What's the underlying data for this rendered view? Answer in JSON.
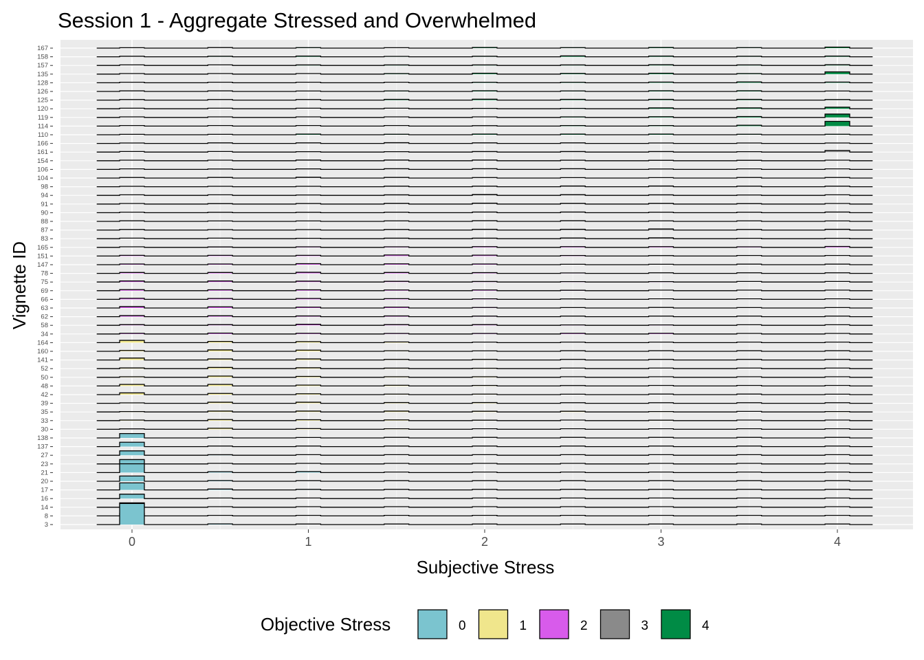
{
  "chart_data": {
    "type": "ridgeline-histogram",
    "title": "Session 1 - Aggregate Stressed and Overwhelmed",
    "xlabel": "Subjective Stress",
    "ylabel": "Vignette ID",
    "xlim": [
      -0.4,
      4.4
    ],
    "x_ticks": [
      "0",
      "1",
      "2",
      "3",
      "4"
    ],
    "bins": [
      0,
      0.5,
      1,
      1.5,
      2,
      2.5,
      3,
      3.5,
      4
    ],
    "legend": {
      "title": "Objective Stress",
      "position": "bottom",
      "entries": [
        {
          "label": "0",
          "color": "#7BC4CF"
        },
        {
          "label": "1",
          "color": "#F0E68C"
        },
        {
          "label": "2",
          "color": "#D85BEB"
        },
        {
          "label": "3",
          "color": "#8A8A8A"
        },
        {
          "label": "4",
          "color": "#008B45"
        }
      ]
    },
    "rows": [
      {
        "id": "3",
        "objective": 0,
        "counts": [
          12,
          0.4,
          0,
          0,
          0,
          0,
          0,
          0,
          0
        ]
      },
      {
        "id": "8",
        "objective": 0,
        "counts": [
          1.5,
          0,
          0,
          0,
          0,
          0,
          0,
          0,
          0
        ]
      },
      {
        "id": "14",
        "objective": 0,
        "counts": [
          2.5,
          0,
          0,
          0,
          0,
          0,
          0,
          0,
          0
        ]
      },
      {
        "id": "16",
        "objective": 0,
        "counts": [
          2.5,
          0,
          0,
          0,
          0,
          0,
          0,
          0,
          0
        ]
      },
      {
        "id": "17",
        "objective": 0,
        "counts": [
          4,
          0.5,
          0.3,
          0,
          0,
          0,
          0,
          0,
          0
        ]
      },
      {
        "id": "20",
        "objective": 0,
        "counts": [
          3,
          0.4,
          0,
          0,
          0,
          0,
          0,
          0,
          0
        ]
      },
      {
        "id": "21",
        "objective": 0,
        "counts": [
          5,
          0.5,
          0.6,
          0,
          0,
          0,
          0,
          0,
          0
        ]
      },
      {
        "id": "23",
        "objective": 0,
        "counts": [
          2.5,
          0,
          0,
          0,
          0,
          0,
          0,
          0,
          0
        ]
      },
      {
        "id": "27",
        "objective": 0,
        "counts": [
          2.5,
          0.3,
          0,
          0,
          0,
          0,
          0,
          0,
          0
        ]
      },
      {
        "id": "137",
        "objective": 0,
        "counts": [
          2.5,
          0,
          0,
          0,
          0,
          0,
          0,
          0,
          0
        ]
      },
      {
        "id": "138",
        "objective": 0,
        "counts": [
          2.5,
          0.3,
          0.2,
          0,
          0,
          0,
          0,
          0,
          0
        ]
      },
      {
        "id": "30",
        "objective": 1,
        "counts": [
          0.2,
          0.6,
          0.4,
          0.3,
          0,
          0,
          0,
          0,
          0
        ]
      },
      {
        "id": "33",
        "objective": 1,
        "counts": [
          0.3,
          0.6,
          0.5,
          0.4,
          0.2,
          0,
          0.2,
          0,
          0
        ]
      },
      {
        "id": "35",
        "objective": 1,
        "counts": [
          0.1,
          0.5,
          0.5,
          0.5,
          0.4,
          0.4,
          0.2,
          0,
          0.1
        ]
      },
      {
        "id": "39",
        "objective": 1,
        "counts": [
          0.2,
          0.6,
          0.6,
          0.4,
          0.4,
          0,
          0,
          0,
          0
        ]
      },
      {
        "id": "42",
        "objective": 1,
        "counts": [
          1,
          0.7,
          0.5,
          0.3,
          0.3,
          0.2,
          0,
          0,
          0.1
        ]
      },
      {
        "id": "48",
        "objective": 1,
        "counts": [
          0.9,
          0.9,
          0.5,
          0.4,
          0.3,
          0.2,
          0,
          0,
          0
        ]
      },
      {
        "id": "50",
        "objective": 1,
        "counts": [
          0.3,
          0.7,
          0.5,
          0.3,
          0.3,
          0,
          0,
          0,
          0
        ]
      },
      {
        "id": "52",
        "objective": 1,
        "counts": [
          0.4,
          0.7,
          0.5,
          0.3,
          0.2,
          0,
          0,
          0,
          0
        ]
      },
      {
        "id": "141",
        "objective": 1,
        "counts": [
          1.1,
          0.6,
          0.6,
          0.3,
          0.3,
          0,
          0,
          0,
          0
        ]
      },
      {
        "id": "160",
        "objective": 1,
        "counts": [
          0.5,
          0.8,
          0.7,
          0.3,
          0.2,
          0,
          0,
          0,
          0
        ]
      },
      {
        "id": "164",
        "objective": 1,
        "counts": [
          1.3,
          0.7,
          0.6,
          0.4,
          0,
          0,
          0,
          0,
          0
        ]
      },
      {
        "id": "34",
        "objective": 2,
        "counts": [
          0.4,
          0.5,
          0.4,
          0.3,
          0.3,
          0.4,
          0.4,
          0,
          0
        ]
      },
      {
        "id": "58",
        "objective": 2,
        "counts": [
          0.4,
          0.4,
          0.6,
          0.4,
          0.4,
          0.2,
          0.2,
          0,
          0
        ]
      },
      {
        "id": "62",
        "objective": 2,
        "counts": [
          0.6,
          0.5,
          0.4,
          0.4,
          0.3,
          0,
          0,
          0,
          0
        ]
      },
      {
        "id": "63",
        "objective": 2,
        "counts": [
          0.8,
          0.7,
          0.5,
          0.5,
          0.3,
          0.2,
          0,
          0.1,
          0.1
        ]
      },
      {
        "id": "66",
        "objective": 2,
        "counts": [
          0.6,
          0.5,
          0.5,
          0.4,
          0.3,
          0.2,
          0,
          0,
          0
        ]
      },
      {
        "id": "69",
        "objective": 2,
        "counts": [
          0.6,
          0.5,
          0.5,
          0.4,
          0.4,
          0.1,
          0,
          0,
          0
        ]
      },
      {
        "id": "75",
        "objective": 2,
        "counts": [
          0.6,
          0.6,
          0.5,
          0.4,
          0.3,
          0.1,
          0.2,
          0,
          0
        ]
      },
      {
        "id": "78",
        "objective": 2,
        "counts": [
          0.5,
          0.5,
          0.6,
          0.5,
          0.4,
          0.2,
          0,
          0,
          0
        ]
      },
      {
        "id": "147",
        "objective": 2,
        "counts": [
          0.4,
          0.4,
          0.6,
          0.5,
          0.4,
          0.2,
          0.2,
          0,
          0
        ]
      },
      {
        "id": "151",
        "objective": 2,
        "counts": [
          0.4,
          0.4,
          0.4,
          0.6,
          0.5,
          0.3,
          0.2,
          0,
          0
        ]
      },
      {
        "id": "165",
        "objective": 2,
        "counts": [
          0,
          0.2,
          0.3,
          0.3,
          0.4,
          0.4,
          0.4,
          0.3,
          0.5
        ]
      },
      {
        "id": "83",
        "objective": 3,
        "counts": [
          0,
          0,
          0.1,
          0.3,
          0.3,
          0.4,
          0.5,
          0.2,
          0.2
        ]
      },
      {
        "id": "87",
        "objective": 3,
        "counts": [
          0,
          0.1,
          0.2,
          0.3,
          0.4,
          0.4,
          0.6,
          0.3,
          0.4
        ]
      },
      {
        "id": "88",
        "objective": 3,
        "counts": [
          0,
          0.1,
          0.2,
          0.3,
          0.4,
          0.4,
          0.3,
          0.3,
          0.1
        ]
      },
      {
        "id": "90",
        "objective": 3,
        "counts": [
          0,
          0.1,
          0.2,
          0.3,
          0.4,
          0.4,
          0.3,
          0.3,
          0.4
        ]
      },
      {
        "id": "91",
        "objective": 3,
        "counts": [
          0,
          0.1,
          0.3,
          0.4,
          0.5,
          0.4,
          0.4,
          0.2,
          0
        ]
      },
      {
        "id": "94",
        "objective": 3,
        "counts": [
          0,
          0,
          0.2,
          0.3,
          0.5,
          0.4,
          0.3,
          0.2,
          0
        ]
      },
      {
        "id": "98",
        "objective": 3,
        "counts": [
          0.1,
          0.1,
          0.2,
          0.3,
          0.3,
          0.4,
          0.4,
          0.3,
          0.3
        ]
      },
      {
        "id": "104",
        "objective": 3,
        "counts": [
          0,
          0.4,
          0.5,
          0.4,
          0.3,
          0.2,
          0.1,
          0,
          0
        ]
      },
      {
        "id": "106",
        "objective": 3,
        "counts": [
          0,
          0.1,
          0.3,
          0.4,
          0.4,
          0.4,
          0.2,
          0,
          0
        ]
      },
      {
        "id": "154",
        "objective": 3,
        "counts": [
          0,
          0,
          0.4,
          0.4,
          0.4,
          0.3,
          0.2,
          0.1,
          0
        ]
      },
      {
        "id": "161",
        "objective": 3,
        "counts": [
          0,
          0,
          0.1,
          0.2,
          0.3,
          0.3,
          0.3,
          0.2,
          0.9
        ]
      },
      {
        "id": "166",
        "objective": 3,
        "counts": [
          0.1,
          0.3,
          0.3,
          0.4,
          0.3,
          0.3,
          0.2,
          0.2,
          0.2
        ]
      },
      {
        "id": "110",
        "objective": 4,
        "counts": [
          0.2,
          0.2,
          0.4,
          0.3,
          0.4,
          0.4,
          0.4,
          0.3,
          0.3
        ]
      },
      {
        "id": "114",
        "objective": 4,
        "counts": [
          0,
          0,
          0,
          0,
          0.2,
          0.3,
          0.3,
          0.5,
          2.7
        ]
      },
      {
        "id": "119",
        "objective": 4,
        "counts": [
          0,
          0,
          0,
          0,
          0,
          0.3,
          0.4,
          0.5,
          1.9
        ]
      },
      {
        "id": "120",
        "objective": 4,
        "counts": [
          0,
          0,
          0,
          0,
          0.1,
          0.2,
          0.5,
          0.5,
          0.9
        ]
      },
      {
        "id": "125",
        "objective": 4,
        "counts": [
          0,
          0,
          0,
          0.4,
          0.5,
          0.4,
          0.4,
          0.4,
          0.3
        ]
      },
      {
        "id": "126",
        "objective": 4,
        "counts": [
          0,
          0,
          0.2,
          0.3,
          0.4,
          0.3,
          0.4,
          0.4,
          0.2
        ]
      },
      {
        "id": "128",
        "objective": 4,
        "counts": [
          0,
          0,
          0,
          0,
          0.3,
          0.3,
          0.4,
          0.5,
          0.4
        ]
      },
      {
        "id": "135",
        "objective": 4,
        "counts": [
          0,
          0,
          0,
          0.3,
          0.5,
          0.4,
          0.5,
          0.3,
          1.3
        ]
      },
      {
        "id": "157",
        "objective": 4,
        "counts": [
          0,
          0,
          0.3,
          0.3,
          0.3,
          0.3,
          0.4,
          0.3,
          0.4
        ]
      },
      {
        "id": "158",
        "objective": 4,
        "counts": [
          0,
          0.3,
          0.4,
          0.2,
          0.3,
          0.5,
          0.4,
          0.3,
          0.4
        ]
      },
      {
        "id": "167",
        "objective": 4,
        "counts": [
          0.1,
          0,
          0.3,
          0.2,
          0.4,
          0.3,
          0.4,
          0.3,
          0.6
        ]
      }
    ]
  }
}
